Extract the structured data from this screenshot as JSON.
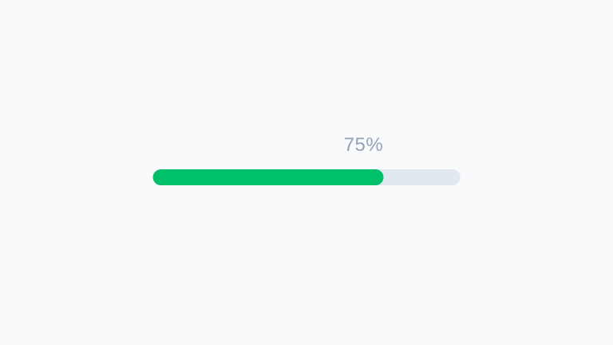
{
  "page": {
    "background_color": "#f8fafc"
  },
  "progress": {
    "label": "75%",
    "percent": 75,
    "fill_color": "#00c16a",
    "track_color": "#e2e8f0",
    "label_color": "#94a3b8"
  }
}
